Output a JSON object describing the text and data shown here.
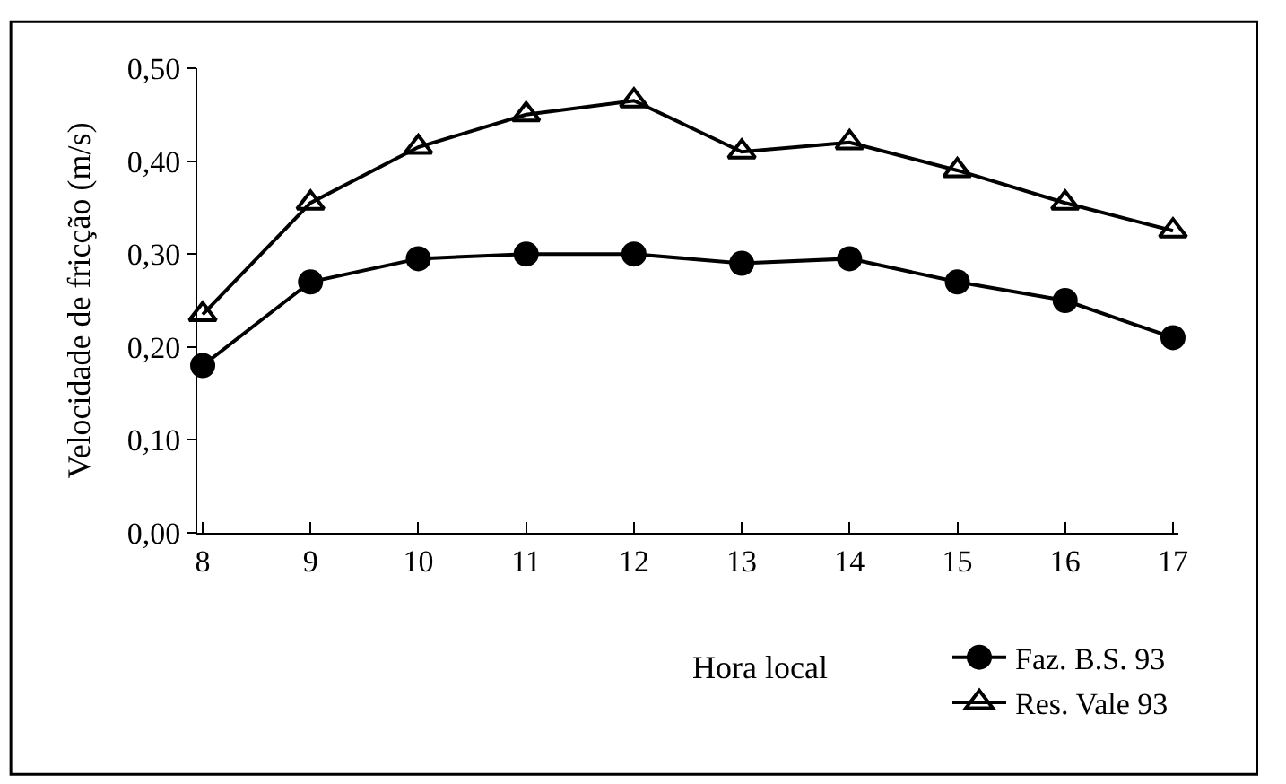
{
  "chart_data": {
    "type": "line",
    "xlabel": "Hora local",
    "ylabel": "Velocidade de fricção (m/s)",
    "categories": [
      "8",
      "9",
      "10",
      "11",
      "12",
      "13",
      "14",
      "15",
      "16",
      "17"
    ],
    "series": [
      {
        "name": "Faz. B.S. 93",
        "color": "#000000",
        "marker": "circle",
        "values": [
          0.18,
          0.27,
          0.295,
          0.3,
          0.3,
          0.29,
          0.295,
          0.27,
          0.25,
          0.21
        ]
      },
      {
        "name": "Res. Vale 93",
        "color": "#000000",
        "marker": "triangle",
        "values": [
          0.235,
          0.355,
          0.415,
          0.45,
          0.465,
          0.41,
          0.42,
          0.39,
          0.355,
          0.325
        ]
      }
    ],
    "ylim": [
      0,
      0.5
    ],
    "yticks": [
      {
        "value": 0,
        "label": "0,00"
      },
      {
        "value": 0.1,
        "label": "0,10"
      },
      {
        "value": 0.2,
        "label": "0,20"
      },
      {
        "value": 0.3,
        "label": "0,30"
      },
      {
        "value": 0.4,
        "label": "0,40"
      },
      {
        "value": 0.5,
        "label": "0,50"
      }
    ],
    "legend": "bottom right",
    "line_style": "solid"
  }
}
